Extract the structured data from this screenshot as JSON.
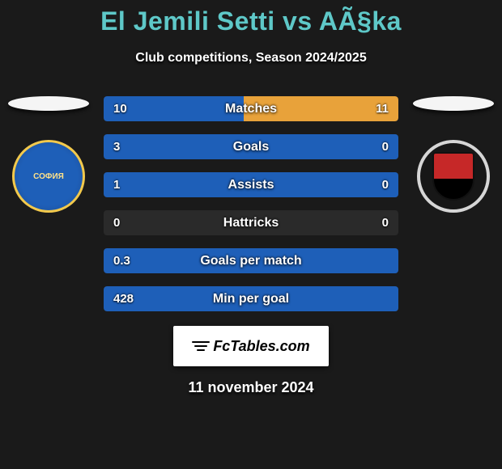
{
  "title_color": "#5ec8c8",
  "title": "El Jemili Setti vs AÃ§ka",
  "subtitle": "Club competitions, Season 2024/2025",
  "left_color": "#1e5fb8",
  "right_color": "#e8a23a",
  "neutral_bar_color": "#2a2a2a",
  "stats": [
    {
      "label": "Matches",
      "left_value": "10",
      "right_value": "11",
      "left_num": 10,
      "right_num": 11
    },
    {
      "label": "Goals",
      "left_value": "3",
      "right_value": "0",
      "left_num": 3,
      "right_num": 0
    },
    {
      "label": "Assists",
      "left_value": "1",
      "right_value": "0",
      "left_num": 1,
      "right_num": 0
    },
    {
      "label": "Hattricks",
      "left_value": "0",
      "right_value": "0",
      "left_num": 0,
      "right_num": 0
    },
    {
      "label": "Goals per match",
      "left_value": "0.3",
      "right_value": "",
      "left_num": 0.3,
      "right_num": 0,
      "full_left": true
    },
    {
      "label": "Min per goal",
      "left_value": "428",
      "right_value": "",
      "left_num": 428,
      "right_num": 0,
      "full_left": true
    }
  ],
  "footer_brand": "FcTables.com",
  "date": "11 november 2024",
  "left_badge_text": "СОФИЯ"
}
